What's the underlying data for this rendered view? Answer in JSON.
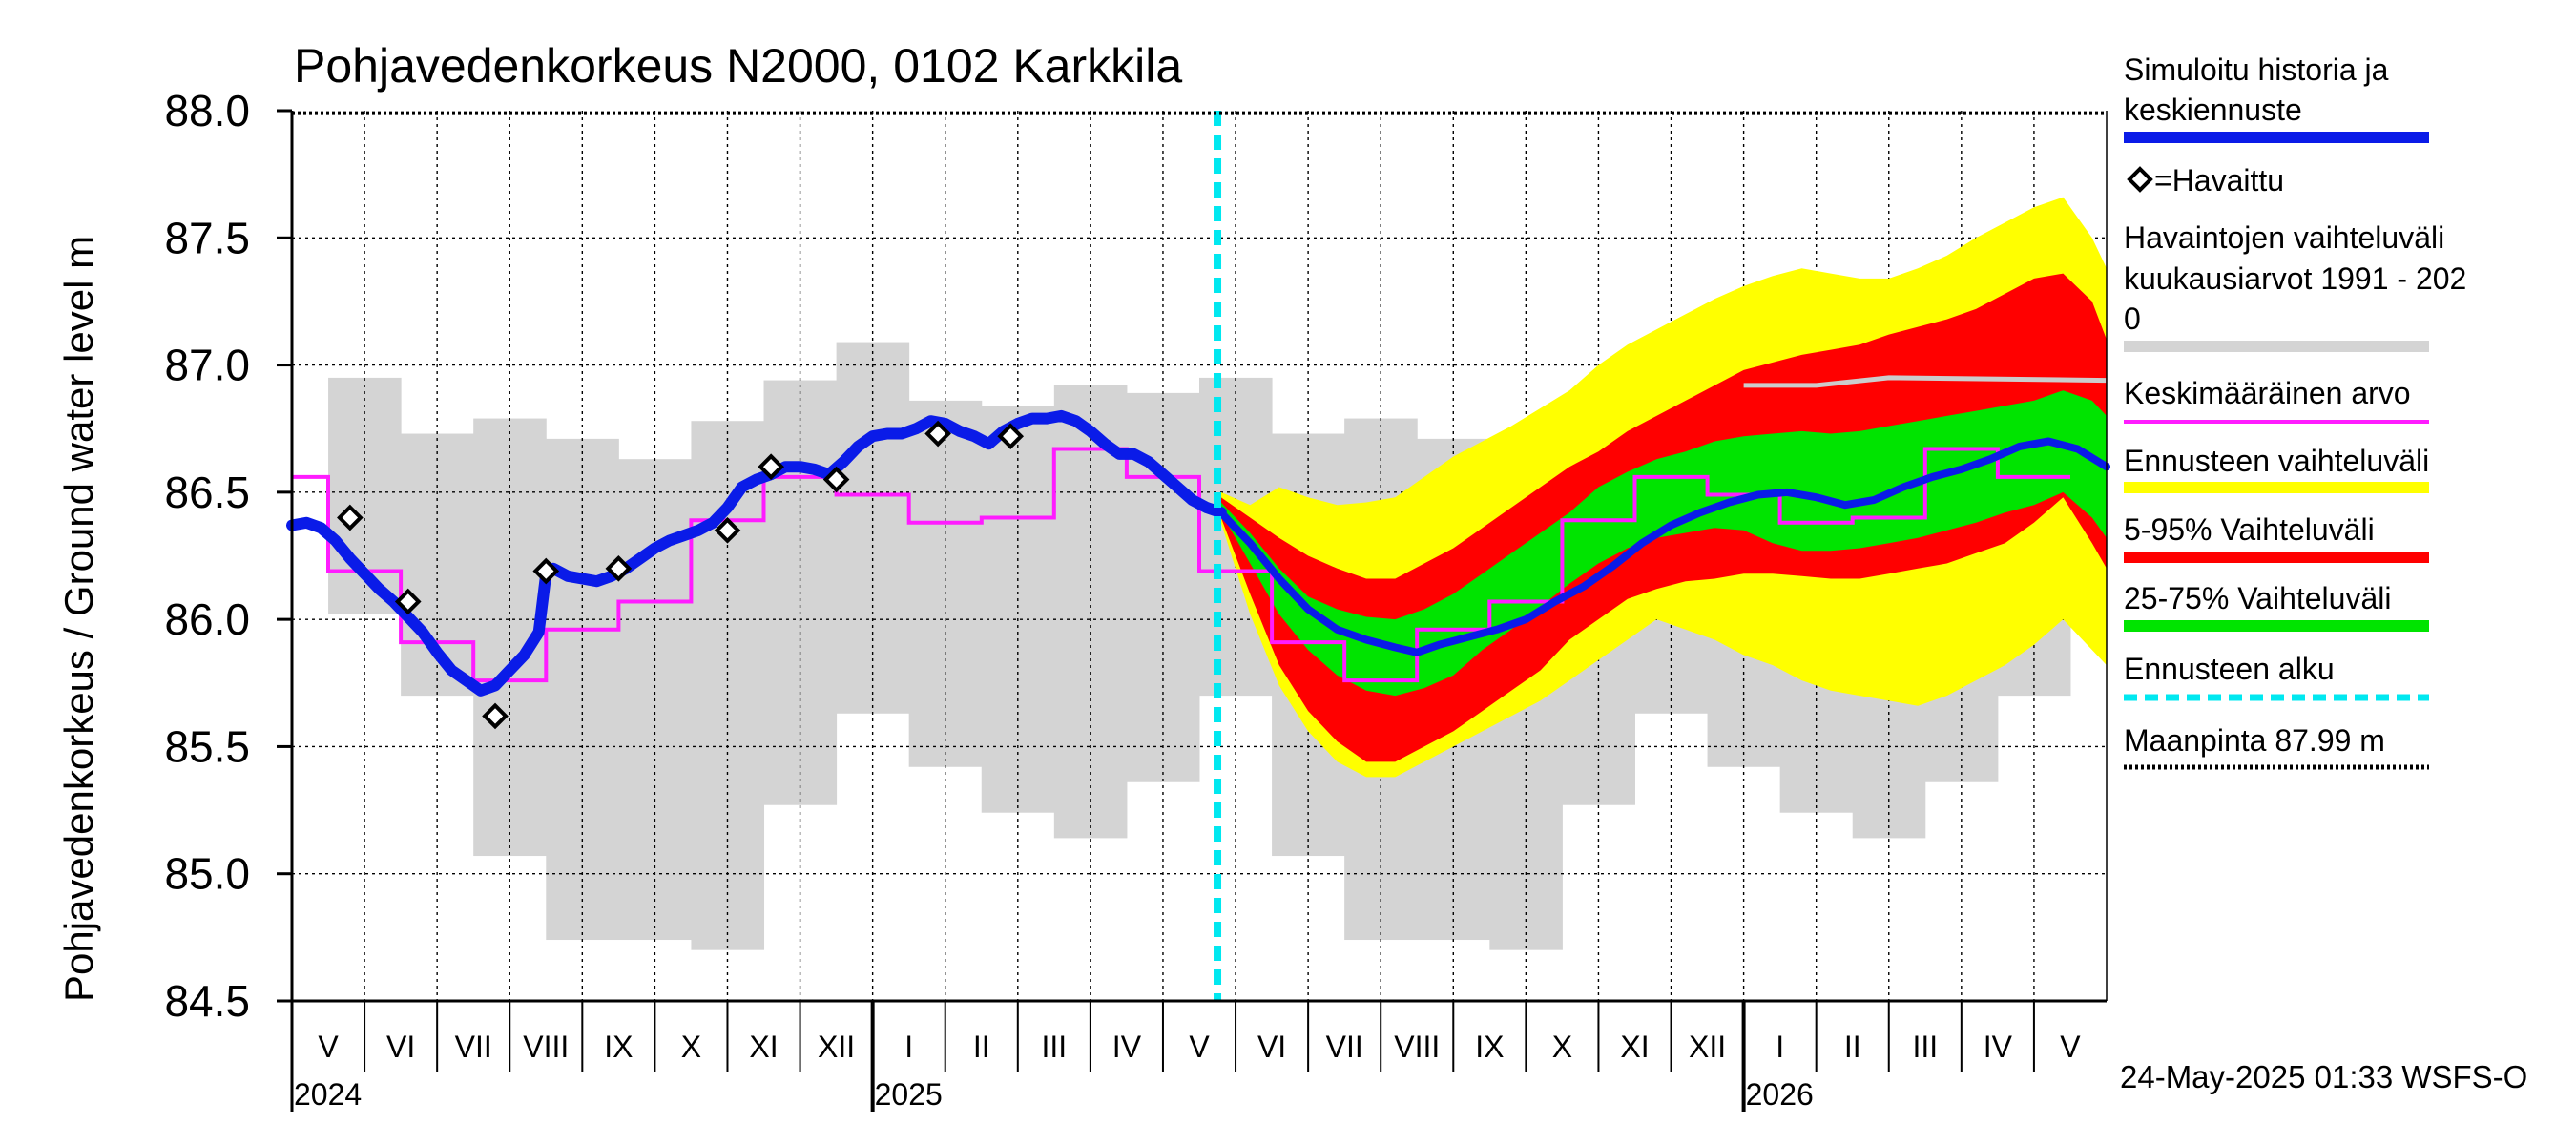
{
  "chart_data": {
    "type": "line",
    "title": "Pohjavedenkorkeus N2000, 0102 Karkkila",
    "ylabel": "Pohjavedenkorkeus / Ground water level   m",
    "ylim": [
      84.5,
      88.0
    ],
    "yticks": [
      "84.5",
      "85.0",
      "85.5",
      "86.0",
      "86.5",
      "87.0",
      "87.5",
      "88.0"
    ],
    "months": [
      "V",
      "VI",
      "VII",
      "VIII",
      "IX",
      "X",
      "XI",
      "XII",
      "I",
      "II",
      "III",
      "IV",
      "V",
      "VI",
      "VII",
      "VIII",
      "IX",
      "X",
      "XI",
      "XII",
      "I",
      "II",
      "III",
      "IV",
      "V"
    ],
    "years": [
      "2024",
      "2025",
      "2026"
    ],
    "forecast_start_month": 12.75,
    "ground_level": 87.99,
    "hist_range": {
      "lo": [
        86.02,
        85.7,
        85.07,
        84.74,
        84.74,
        84.7,
        85.27,
        85.63,
        85.42,
        85.24,
        85.14,
        85.36,
        85.7,
        85.07,
        84.74,
        84.74,
        84.7,
        85.27,
        85.63,
        85.42,
        85.24,
        85.14,
        85.36,
        85.7
      ],
      "hi": [
        86.95,
        86.73,
        86.79,
        86.71,
        86.63,
        86.78,
        86.94,
        87.09,
        86.86,
        86.84,
        86.92,
        86.89,
        86.95,
        86.73,
        86.79,
        86.71,
        86.63,
        86.78,
        86.94,
        87.09,
        86.86,
        86.84,
        86.92,
        86.89
      ]
    },
    "mean_monthly": [
      86.56,
      86.19,
      85.91,
      85.76,
      85.96,
      86.07,
      86.39,
      86.56,
      86.49,
      86.38,
      86.4,
      86.67,
      86.56,
      86.19,
      85.91,
      85.76,
      85.96,
      86.07,
      86.39,
      86.56,
      86.49,
      86.38,
      86.4,
      86.67,
      86.56
    ],
    "hist_gray_line": [
      [
        20.0,
        86.92
      ],
      [
        21.0,
        86.92
      ],
      [
        22.0,
        86.95
      ],
      [
        24.99,
        86.94
      ]
    ],
    "simulated": [
      [
        0.0,
        86.37
      ],
      [
        0.2,
        86.38
      ],
      [
        0.4,
        86.36
      ],
      [
        0.6,
        86.31
      ],
      [
        0.8,
        86.24
      ],
      [
        1.0,
        86.18
      ],
      [
        1.2,
        86.12
      ],
      [
        1.4,
        86.07
      ],
      [
        1.6,
        86.01
      ],
      [
        1.8,
        85.95
      ],
      [
        2.0,
        85.87
      ],
      [
        2.2,
        85.8
      ],
      [
        2.4,
        85.76
      ],
      [
        2.6,
        85.72
      ],
      [
        2.8,
        85.74
      ],
      [
        3.0,
        85.8
      ],
      [
        3.2,
        85.86
      ],
      [
        3.4,
        85.95
      ],
      [
        3.5,
        86.18
      ],
      [
        3.6,
        86.2
      ],
      [
        3.8,
        86.17
      ],
      [
        4.0,
        86.16
      ],
      [
        4.2,
        86.15
      ],
      [
        4.4,
        86.17
      ],
      [
        4.6,
        86.2
      ],
      [
        4.8,
        86.24
      ],
      [
        5.0,
        86.28
      ],
      [
        5.2,
        86.31
      ],
      [
        5.4,
        86.33
      ],
      [
        5.6,
        86.35
      ],
      [
        5.8,
        86.38
      ],
      [
        6.0,
        86.44
      ],
      [
        6.2,
        86.52
      ],
      [
        6.4,
        86.55
      ],
      [
        6.6,
        86.57
      ],
      [
        6.8,
        86.6
      ],
      [
        7.0,
        86.6
      ],
      [
        7.2,
        86.59
      ],
      [
        7.4,
        86.57
      ],
      [
        7.6,
        86.62
      ],
      [
        7.8,
        86.68
      ],
      [
        8.0,
        86.72
      ],
      [
        8.2,
        86.73
      ],
      [
        8.4,
        86.73
      ],
      [
        8.6,
        86.75
      ],
      [
        8.8,
        86.78
      ],
      [
        9.0,
        86.77
      ],
      [
        9.2,
        86.74
      ],
      [
        9.4,
        86.72
      ],
      [
        9.6,
        86.69
      ],
      [
        9.8,
        86.74
      ],
      [
        10.0,
        86.77
      ],
      [
        10.2,
        86.79
      ],
      [
        10.4,
        86.79
      ],
      [
        10.6,
        86.8
      ],
      [
        10.8,
        86.78
      ],
      [
        11.0,
        86.74
      ],
      [
        11.2,
        86.69
      ],
      [
        11.4,
        86.65
      ],
      [
        11.6,
        86.65
      ],
      [
        11.8,
        86.62
      ],
      [
        12.0,
        86.57
      ],
      [
        12.2,
        86.52
      ],
      [
        12.4,
        86.47
      ],
      [
        12.6,
        86.44
      ],
      [
        12.8,
        86.42
      ]
    ],
    "forecast_median": [
      [
        12.8,
        86.42
      ],
      [
        13.2,
        86.3
      ],
      [
        13.6,
        86.16
      ],
      [
        14.0,
        86.04
      ],
      [
        14.4,
        85.96
      ],
      [
        14.8,
        85.92
      ],
      [
        15.2,
        85.89
      ],
      [
        15.5,
        85.87
      ],
      [
        15.8,
        85.9
      ],
      [
        16.2,
        85.93
      ],
      [
        16.6,
        85.96
      ],
      [
        17.0,
        86.0
      ],
      [
        17.4,
        86.07
      ],
      [
        17.8,
        86.13
      ],
      [
        18.2,
        86.21
      ],
      [
        18.6,
        86.3
      ],
      [
        19.0,
        86.37
      ],
      [
        19.4,
        86.42
      ],
      [
        19.8,
        86.46
      ],
      [
        20.2,
        86.49
      ],
      [
        20.6,
        86.5
      ],
      [
        21.0,
        86.48
      ],
      [
        21.4,
        86.45
      ],
      [
        21.8,
        86.47
      ],
      [
        22.2,
        86.52
      ],
      [
        22.6,
        86.56
      ],
      [
        23.0,
        86.59
      ],
      [
        23.4,
        86.63
      ],
      [
        23.8,
        86.68
      ],
      [
        24.2,
        86.7
      ],
      [
        24.6,
        86.67
      ],
      [
        25.0,
        86.6
      ]
    ],
    "forecast_range": {
      "x": [
        12.8,
        13.2,
        13.6,
        14.0,
        14.4,
        14.8,
        15.2,
        15.6,
        16.0,
        16.4,
        16.8,
        17.2,
        17.6,
        18.0,
        18.4,
        18.8,
        19.2,
        19.6,
        20.0,
        20.4,
        20.8,
        21.2,
        21.6,
        22.0,
        22.4,
        22.8,
        23.2,
        23.6,
        24.0,
        24.4,
        24.8,
        25.0
      ],
      "y_hi": [
        86.5,
        86.45,
        86.52,
        86.48,
        86.45,
        86.46,
        86.48,
        86.56,
        86.64,
        86.7,
        86.76,
        86.83,
        86.9,
        87.0,
        87.08,
        87.14,
        87.2,
        87.26,
        87.31,
        87.35,
        87.38,
        87.36,
        87.34,
        87.34,
        87.38,
        87.43,
        87.5,
        87.56,
        87.62,
        87.66,
        87.5,
        87.38
      ],
      "p95": [
        86.48,
        86.4,
        86.32,
        86.25,
        86.2,
        86.16,
        86.16,
        86.22,
        86.28,
        86.36,
        86.44,
        86.52,
        86.6,
        86.66,
        86.74,
        86.8,
        86.86,
        86.92,
        86.98,
        87.01,
        87.04,
        87.06,
        87.08,
        87.12,
        87.15,
        87.18,
        87.22,
        87.28,
        87.34,
        87.36,
        87.25,
        87.1
      ],
      "p75": [
        86.46,
        86.34,
        86.2,
        86.09,
        86.04,
        86.01,
        86.0,
        86.04,
        86.1,
        86.18,
        86.26,
        86.34,
        86.42,
        86.52,
        86.58,
        86.63,
        86.66,
        86.7,
        86.72,
        86.73,
        86.74,
        86.73,
        86.74,
        86.76,
        86.78,
        86.8,
        86.82,
        86.84,
        86.86,
        86.9,
        86.86,
        86.8
      ],
      "p25": [
        86.42,
        86.22,
        86.02,
        85.88,
        85.78,
        85.72,
        85.7,
        85.73,
        85.78,
        85.88,
        85.96,
        86.05,
        86.14,
        86.22,
        86.28,
        86.32,
        86.34,
        86.36,
        86.35,
        86.3,
        86.27,
        86.27,
        86.28,
        86.3,
        86.32,
        86.35,
        86.38,
        86.42,
        86.45,
        86.5,
        86.4,
        86.32
      ],
      "p05": [
        86.4,
        86.1,
        85.82,
        85.64,
        85.52,
        85.44,
        85.44,
        85.5,
        85.56,
        85.64,
        85.72,
        85.8,
        85.92,
        86.0,
        86.08,
        86.12,
        86.15,
        86.16,
        86.18,
        86.18,
        86.17,
        86.16,
        86.16,
        86.18,
        86.2,
        86.22,
        86.26,
        86.3,
        86.38,
        86.48,
        86.3,
        86.2
      ],
      "y_lo": [
        86.38,
        86.02,
        85.74,
        85.56,
        85.44,
        85.38,
        85.38,
        85.44,
        85.5,
        85.56,
        85.62,
        85.68,
        85.76,
        85.84,
        85.92,
        86.0,
        85.96,
        85.92,
        85.86,
        85.82,
        85.76,
        85.72,
        85.7,
        85.68,
        85.66,
        85.7,
        85.76,
        85.82,
        85.9,
        86.0,
        85.88,
        85.82
      ]
    },
    "observations": [
      [
        0.8,
        86.4
      ],
      [
        1.6,
        86.07
      ],
      [
        2.8,
        85.62
      ],
      [
        3.5,
        86.19
      ],
      [
        4.5,
        86.2
      ],
      [
        6.0,
        86.35
      ],
      [
        6.6,
        86.6
      ],
      [
        7.5,
        86.55
      ],
      [
        8.9,
        86.73
      ],
      [
        9.9,
        86.72
      ]
    ],
    "legend": {
      "sim": [
        "Simuloitu historia ja",
        "keskiennuste"
      ],
      "obs": "=Havaittu",
      "range": [
        "Havaintojen vaihteluväli",
        " kuukausiarvot 1991 - 202",
        "0"
      ],
      "mean": "Keskimääräinen arvo",
      "fc_range": "Ennusteen vaihteluväli",
      "p5_95": "5-95% Vaihteluväli",
      "p25_75": "25-75% Vaihteluväli",
      "fc_start": "Ennusteen alku",
      "ground": "Maanpinta 87.99 m"
    },
    "colors": {
      "sim": "#0a1be8",
      "obs": "#000000",
      "range": "#d4d4d4",
      "mean": "#ff1cff",
      "fc_range": "#ffff00",
      "p5_95": "#ff0000",
      "p25_75": "#00e400",
      "fc_start": "#00e8f0",
      "ground": "#000000"
    }
  },
  "footer": "24-May-2025 01:33 WSFS-O"
}
